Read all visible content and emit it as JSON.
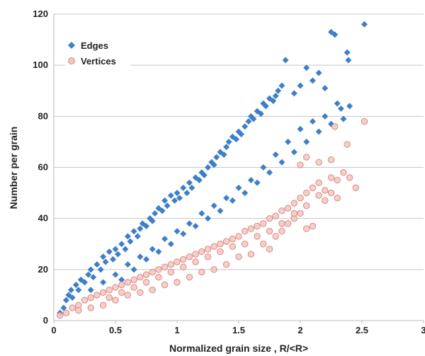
{
  "chart_data": {
    "type": "scatter",
    "title": "",
    "xlabel": "Normalized grain size , R/<R>",
    "ylabel": "Number per grain",
    "xlim": [
      0,
      3
    ],
    "ylim": [
      0,
      120
    ],
    "x_ticks": [
      "0",
      "0.5",
      "1",
      "1.5",
      "2",
      "2.5",
      "3"
    ],
    "y_ticks": [
      "0",
      "20",
      "40",
      "60",
      "80",
      "100",
      "120"
    ],
    "grid": "horizontal",
    "legend_position": "top-left",
    "series": [
      {
        "name": "Edges",
        "marker": "diamond",
        "color": "#3f7fc8",
        "points": [
          [
            0.05,
            3
          ],
          [
            0.08,
            5
          ],
          [
            0.1,
            8
          ],
          [
            0.12,
            10
          ],
          [
            0.14,
            12
          ],
          [
            0.15,
            9
          ],
          [
            0.18,
            14
          ],
          [
            0.2,
            12
          ],
          [
            0.22,
            16
          ],
          [
            0.25,
            15
          ],
          [
            0.28,
            18
          ],
          [
            0.3,
            20
          ],
          [
            0.32,
            17
          ],
          [
            0.35,
            22
          ],
          [
            0.38,
            20
          ],
          [
            0.4,
            25
          ],
          [
            0.42,
            23
          ],
          [
            0.45,
            27
          ],
          [
            0.48,
            24
          ],
          [
            0.5,
            28
          ],
          [
            0.52,
            26
          ],
          [
            0.55,
            30
          ],
          [
            0.58,
            28
          ],
          [
            0.6,
            33
          ],
          [
            0.62,
            31
          ],
          [
            0.65,
            35
          ],
          [
            0.68,
            33
          ],
          [
            0.7,
            36
          ],
          [
            0.72,
            38
          ],
          [
            0.75,
            37
          ],
          [
            0.78,
            40
          ],
          [
            0.8,
            39
          ],
          [
            0.82,
            42
          ],
          [
            0.85,
            44
          ],
          [
            0.88,
            43
          ],
          [
            0.9,
            47
          ],
          [
            0.92,
            45
          ],
          [
            0.95,
            49
          ],
          [
            0.98,
            47
          ],
          [
            1.0,
            50
          ],
          [
            1.02,
            48
          ],
          [
            1.05,
            52
          ],
          [
            1.08,
            50
          ],
          [
            1.1,
            54
          ],
          [
            1.12,
            52
          ],
          [
            1.15,
            56
          ],
          [
            1.18,
            55
          ],
          [
            1.2,
            58
          ],
          [
            1.22,
            57
          ],
          [
            1.25,
            60
          ],
          [
            1.28,
            62
          ],
          [
            1.3,
            61
          ],
          [
            1.32,
            64
          ],
          [
            1.35,
            66
          ],
          [
            1.38,
            65
          ],
          [
            1.4,
            68
          ],
          [
            1.42,
            70
          ],
          [
            1.45,
            72
          ],
          [
            1.48,
            71
          ],
          [
            1.5,
            74
          ],
          [
            1.52,
            73
          ],
          [
            1.55,
            76
          ],
          [
            1.58,
            78
          ],
          [
            1.6,
            80
          ],
          [
            1.62,
            79
          ],
          [
            1.65,
            82
          ],
          [
            1.68,
            81
          ],
          [
            1.7,
            85
          ],
          [
            1.72,
            84
          ],
          [
            1.75,
            87
          ],
          [
            1.78,
            86
          ],
          [
            1.8,
            88
          ],
          [
            1.82,
            90
          ],
          [
            1.85,
            92
          ],
          [
            1.88,
            102
          ],
          [
            1.95,
            89
          ],
          [
            2.0,
            92
          ],
          [
            2.05,
            99
          ],
          [
            2.1,
            94
          ],
          [
            2.15,
            97
          ],
          [
            2.2,
            91
          ],
          [
            2.25,
            113
          ],
          [
            2.28,
            112
          ],
          [
            2.33,
            83
          ],
          [
            2.38,
            105
          ],
          [
            2.39,
            102
          ],
          [
            2.52,
            116
          ],
          [
            0.3,
            12
          ],
          [
            0.4,
            15
          ],
          [
            0.5,
            18
          ],
          [
            0.6,
            22
          ],
          [
            0.7,
            25
          ],
          [
            0.8,
            28
          ],
          [
            0.9,
            32
          ],
          [
            1.0,
            35
          ],
          [
            1.1,
            38
          ],
          [
            1.2,
            42
          ],
          [
            1.3,
            45
          ],
          [
            1.4,
            48
          ],
          [
            1.5,
            52
          ],
          [
            1.6,
            55
          ],
          [
            1.7,
            60
          ],
          [
            1.8,
            65
          ],
          [
            1.9,
            70
          ],
          [
            2.0,
            75
          ],
          [
            2.1,
            78
          ],
          [
            2.2,
            80
          ],
          [
            2.3,
            85
          ],
          [
            2.4,
            84
          ],
          [
            0.55,
            16
          ],
          [
            0.65,
            20
          ],
          [
            0.75,
            24
          ],
          [
            0.85,
            27
          ],
          [
            0.95,
            30
          ],
          [
            1.05,
            34
          ],
          [
            1.15,
            37
          ],
          [
            1.25,
            40
          ],
          [
            1.35,
            43
          ],
          [
            1.45,
            47
          ],
          [
            1.55,
            50
          ],
          [
            1.65,
            54
          ],
          [
            1.75,
            58
          ],
          [
            1.85,
            62
          ],
          [
            1.95,
            66
          ],
          [
            2.05,
            70
          ],
          [
            2.15,
            74
          ],
          [
            2.25,
            77
          ],
          [
            2.35,
            79
          ]
        ]
      },
      {
        "name": "Vertices",
        "marker": "circle",
        "color": "#e8a8a0",
        "points": [
          [
            0.05,
            2
          ],
          [
            0.1,
            3
          ],
          [
            0.15,
            5
          ],
          [
            0.2,
            6
          ],
          [
            0.25,
            8
          ],
          [
            0.3,
            9
          ],
          [
            0.35,
            10
          ],
          [
            0.4,
            11
          ],
          [
            0.45,
            12
          ],
          [
            0.5,
            13
          ],
          [
            0.55,
            14
          ],
          [
            0.6,
            15
          ],
          [
            0.65,
            16
          ],
          [
            0.7,
            17
          ],
          [
            0.75,
            18
          ],
          [
            0.8,
            19
          ],
          [
            0.85,
            20
          ],
          [
            0.9,
            21
          ],
          [
            0.95,
            22
          ],
          [
            1.0,
            23
          ],
          [
            1.05,
            24
          ],
          [
            1.1,
            25
          ],
          [
            1.15,
            26
          ],
          [
            1.2,
            27
          ],
          [
            1.25,
            28
          ],
          [
            1.3,
            29
          ],
          [
            1.35,
            30
          ],
          [
            1.4,
            31
          ],
          [
            1.45,
            32
          ],
          [
            1.5,
            33
          ],
          [
            1.55,
            35
          ],
          [
            1.6,
            36
          ],
          [
            1.65,
            37
          ],
          [
            1.7,
            38
          ],
          [
            1.75,
            40
          ],
          [
            1.8,
            41
          ],
          [
            1.85,
            43
          ],
          [
            1.9,
            44
          ],
          [
            1.95,
            46
          ],
          [
            2.0,
            48
          ],
          [
            2.05,
            50
          ],
          [
            2.1,
            52
          ],
          [
            2.15,
            54
          ],
          [
            2.2,
            51
          ],
          [
            2.25,
            56
          ],
          [
            2.3,
            55
          ],
          [
            2.35,
            58
          ],
          [
            2.4,
            56
          ],
          [
            2.45,
            52
          ],
          [
            2.3,
            48
          ],
          [
            2.2,
            47
          ],
          [
            2.25,
            63
          ],
          [
            2.28,
            76
          ],
          [
            2.38,
            69
          ],
          [
            2.52,
            78
          ],
          [
            2.0,
            61
          ],
          [
            2.05,
            64
          ],
          [
            2.15,
            62
          ],
          [
            1.7,
            30
          ],
          [
            1.75,
            28
          ],
          [
            1.8,
            33
          ],
          [
            1.85,
            35
          ],
          [
            1.9,
            38
          ],
          [
            1.95,
            40
          ],
          [
            2.0,
            42
          ],
          [
            2.05,
            36
          ],
          [
            2.1,
            37
          ],
          [
            1.6,
            26
          ],
          [
            1.5,
            25
          ],
          [
            1.4,
            22
          ],
          [
            1.3,
            20
          ],
          [
            1.2,
            19
          ],
          [
            1.1,
            17
          ],
          [
            1.0,
            15
          ],
          [
            0.9,
            14
          ],
          [
            0.8,
            12
          ],
          [
            0.7,
            11
          ],
          [
            0.6,
            10
          ],
          [
            0.5,
            8
          ],
          [
            0.4,
            6
          ],
          [
            0.3,
            5
          ],
          [
            0.2,
            4
          ],
          [
            0.45,
            9
          ],
          [
            0.55,
            11
          ],
          [
            0.65,
            13
          ],
          [
            0.75,
            15
          ],
          [
            0.85,
            17
          ],
          [
            0.95,
            19
          ],
          [
            1.05,
            21
          ],
          [
            1.15,
            23
          ],
          [
            1.25,
            25
          ],
          [
            1.35,
            27
          ],
          [
            1.45,
            29
          ],
          [
            1.55,
            30
          ],
          [
            1.65,
            33
          ],
          [
            1.75,
            35
          ],
          [
            1.85,
            38
          ],
          [
            1.95,
            42
          ],
          [
            2.05,
            45
          ],
          [
            2.15,
            49
          ],
          [
            2.25,
            50
          ]
        ]
      }
    ]
  }
}
